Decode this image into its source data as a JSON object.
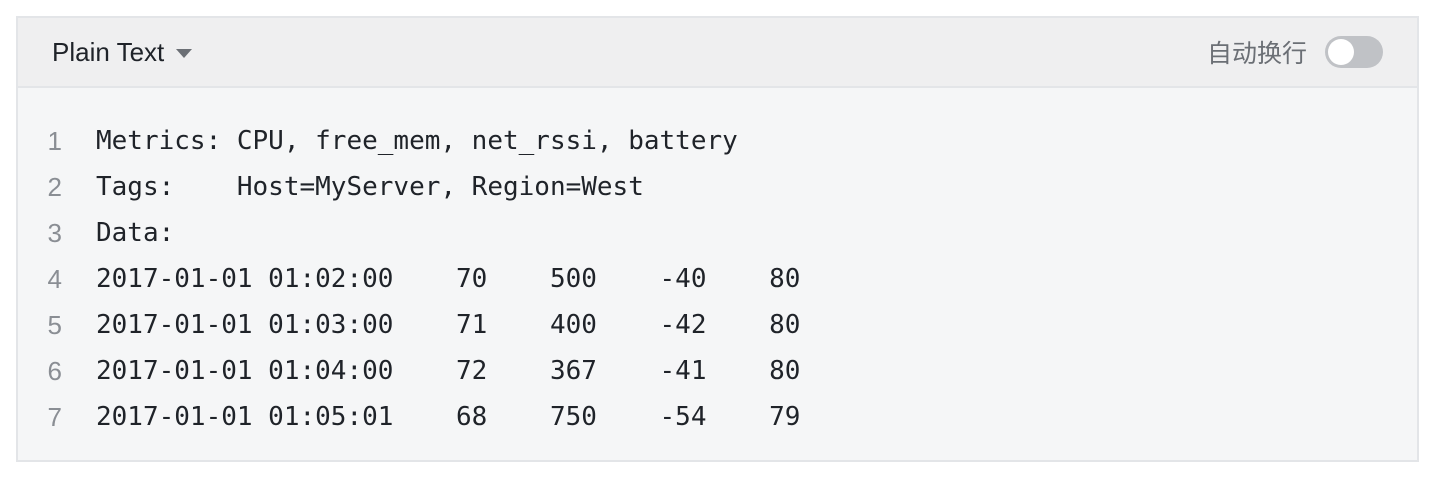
{
  "header": {
    "language": "Plain Text",
    "wrap_label": "自动换行",
    "wrap_enabled": false
  },
  "code": {
    "lines": [
      {
        "number": "1",
        "text": "Metrics: CPU, free_mem, net_rssi, battery"
      },
      {
        "number": "2",
        "text": "Tags:    Host=MyServer, Region=West"
      },
      {
        "number": "3",
        "text": "Data:"
      },
      {
        "number": "4",
        "text": "2017-01-01 01:02:00    70    500    -40    80"
      },
      {
        "number": "5",
        "text": "2017-01-01 01:03:00    71    400    -42    80"
      },
      {
        "number": "6",
        "text": "2017-01-01 01:04:00    72    367    -41    80"
      },
      {
        "number": "7",
        "text": "2017-01-01 01:05:01    68    750    -54    79"
      }
    ]
  }
}
